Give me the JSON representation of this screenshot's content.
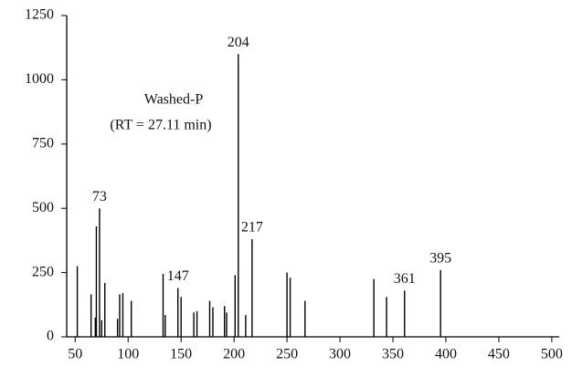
{
  "chart_data": {
    "type": "stem",
    "annotation": [
      "Washed-P",
      "(RT = 27.11 min)"
    ],
    "x": [
      52,
      65,
      69,
      70,
      75,
      78,
      73,
      90,
      92,
      95,
      103,
      133,
      135,
      147,
      150,
      162,
      165,
      177,
      180,
      191,
      193,
      201,
      204,
      211,
      217,
      250,
      253,
      267,
      332,
      344,
      361,
      395
    ],
    "values": [
      275,
      165,
      75,
      430,
      65,
      210,
      500,
      70,
      165,
      170,
      140,
      245,
      85,
      190,
      155,
      95,
      100,
      140,
      115,
      120,
      95,
      240,
      1100,
      85,
      380,
      250,
      230,
      140,
      225,
      155,
      180,
      260
    ],
    "peak_labels": [
      null,
      null,
      null,
      null,
      null,
      null,
      "73",
      null,
      null,
      null,
      null,
      null,
      null,
      "147",
      null,
      null,
      null,
      null,
      null,
      null,
      null,
      null,
      "204",
      null,
      "217",
      null,
      null,
      null,
      null,
      null,
      "361",
      "395"
    ],
    "color": "#000000",
    "xlim": [
      42,
      507
    ],
    "xticks": [
      50,
      100,
      150,
      200,
      250,
      300,
      350,
      400,
      450,
      500
    ],
    "ylim": [
      0,
      1250
    ],
    "yticks": [
      0,
      250,
      500,
      750,
      1000,
      1250
    ]
  }
}
